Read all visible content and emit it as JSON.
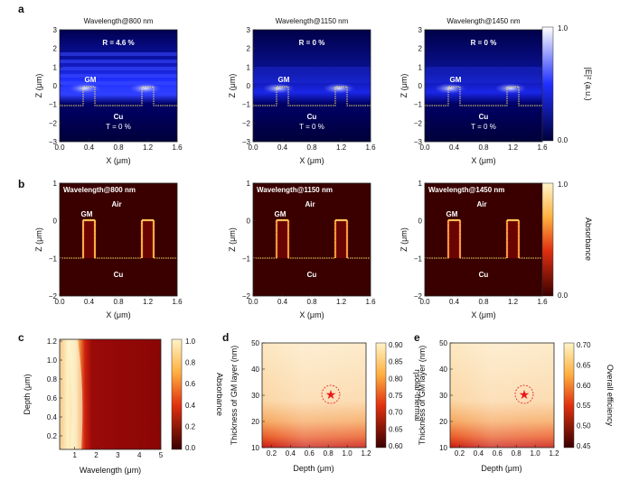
{
  "figure": {
    "row_a": {
      "label": "a",
      "x_label": "X (μm)",
      "y_label": "Z (μm)",
      "x_ticks": [
        "0.0",
        "0.4",
        "0.8",
        "1.2",
        "1.6"
      ],
      "y_ticks": [
        "3",
        "2",
        "1",
        "0",
        "−1",
        "−2",
        "−3"
      ],
      "colorbar_label": "|E|² (a.u.)",
      "colorbar_ticks": [
        "1.0",
        "0.0"
      ],
      "panels": [
        {
          "title": "Wavelength@800 nm",
          "R": "R = 4.6 %",
          "T": "T = 0 %",
          "gm": "GM",
          "cu": "Cu"
        },
        {
          "title": "Wavelength@1150 nm",
          "R": "R = 0 %",
          "T": "T = 0 %",
          "gm": "GM",
          "cu": "Cu"
        },
        {
          "title": "Wavelength@1450 nm",
          "R": "R = 0 %",
          "T": "T = 0 %",
          "gm": "GM",
          "cu": "Cu"
        }
      ]
    },
    "row_b": {
      "label": "b",
      "x_label": "X (μm)",
      "y_label": "Z (μm)",
      "x_ticks": [
        "0.0",
        "0.4",
        "0.8",
        "1.2",
        "1.6"
      ],
      "y_ticks": [
        "1",
        "0",
        "−1",
        "−2"
      ],
      "colorbar_label": "Absorbance",
      "colorbar_ticks": [
        "1.0",
        "0.0"
      ],
      "panels": [
        {
          "title": "Wavelength@800 nm",
          "gm": "GM",
          "air": "Air",
          "cu": "Cu"
        },
        {
          "title": "Wavelength@1150 nm",
          "gm": "GM",
          "air": "Air",
          "cu": "Cu"
        },
        {
          "title": "Wavelength@1450 nm",
          "gm": "GM",
          "air": "Air",
          "cu": "Cu"
        }
      ]
    },
    "row_c": {
      "label": "c",
      "x_label": "Wavelength (μm)",
      "y_label": "Depth (μm)",
      "x_ticks": [
        "1",
        "2",
        "3",
        "4",
        "5"
      ],
      "y_ticks": [
        "1.2",
        "1.0",
        "0.8",
        "0.6",
        "0.4",
        "0.2"
      ],
      "colorbar_label": "Absorbance",
      "colorbar_ticks": [
        "1.0",
        "0.8",
        "0.6",
        "0.4",
        "0.2",
        "0.0"
      ]
    },
    "row_d": {
      "label": "d",
      "x_label": "Depth (μm)",
      "y_label": "Thickness of GM layer (nm)",
      "x_ticks": [
        "0.2",
        "0.4",
        "0.6",
        "0.8",
        "1.0",
        "1.2"
      ],
      "y_ticks": [
        "50",
        "40",
        "30",
        "20",
        "10"
      ],
      "colorbar_label": "ηsolar-thermal",
      "colorbar_ticks": [
        "0.90",
        "0.85",
        "0.80",
        "0.75",
        "0.70",
        "0.65",
        "0.60"
      ]
    },
    "row_e": {
      "label": "e",
      "x_label": "Depth (μm)",
      "y_label": "Thickness of GM layer (nm)",
      "x_ticks": [
        "0.2",
        "0.4",
        "0.6",
        "0.8",
        "1.0",
        "1.2"
      ],
      "y_ticks": [
        "50",
        "40",
        "30",
        "20",
        "10"
      ],
      "colorbar_label": "Overall efficiency",
      "colorbar_ticks": [
        "0.70",
        "0.65",
        "0.60",
        "0.55",
        "0.50",
        "0.45"
      ]
    }
  },
  "colors": {
    "field_dark": "#00003a",
    "field_blue": "#1a2cff",
    "abs_dark": "#3a0000",
    "abs_bright": "#ffd27a",
    "gm_outline": "#f2e36a",
    "star": "#e8191b"
  },
  "icons": {
    "optimum_marker": "star-icon"
  }
}
